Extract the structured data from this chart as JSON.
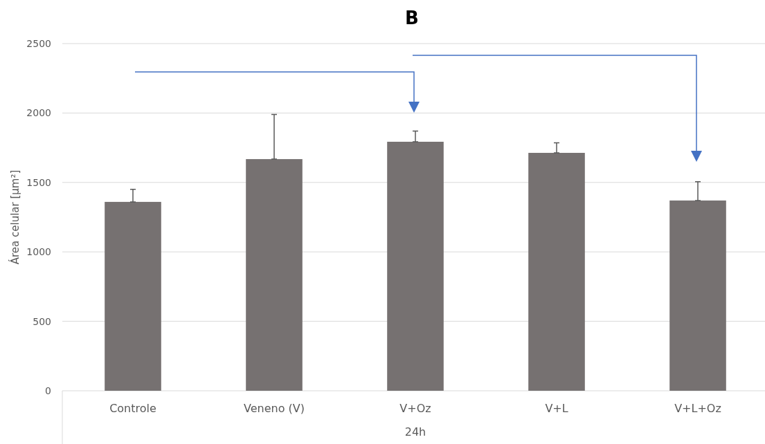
{
  "chart_data": {
    "type": "bar",
    "title": "B",
    "xlabel": "24h",
    "ylabel": "Área celular [µm²]",
    "categories": [
      "Controle",
      "Veneno (V)",
      "V+Oz",
      "V+L",
      "V+L+Oz"
    ],
    "values": [
      1360,
      1668,
      1793,
      1713,
      1370
    ],
    "errors": [
      [
        1360,
        1450
      ],
      [
        1668,
        1990
      ],
      [
        1793,
        1870
      ],
      [
        1713,
        1785
      ],
      [
        1370,
        1505
      ]
    ],
    "color": "#767171",
    "ylim": [
      0,
      2500
    ],
    "yticks": [
      0,
      500,
      1000,
      1500,
      2000,
      2500
    ],
    "grid": "y"
  }
}
